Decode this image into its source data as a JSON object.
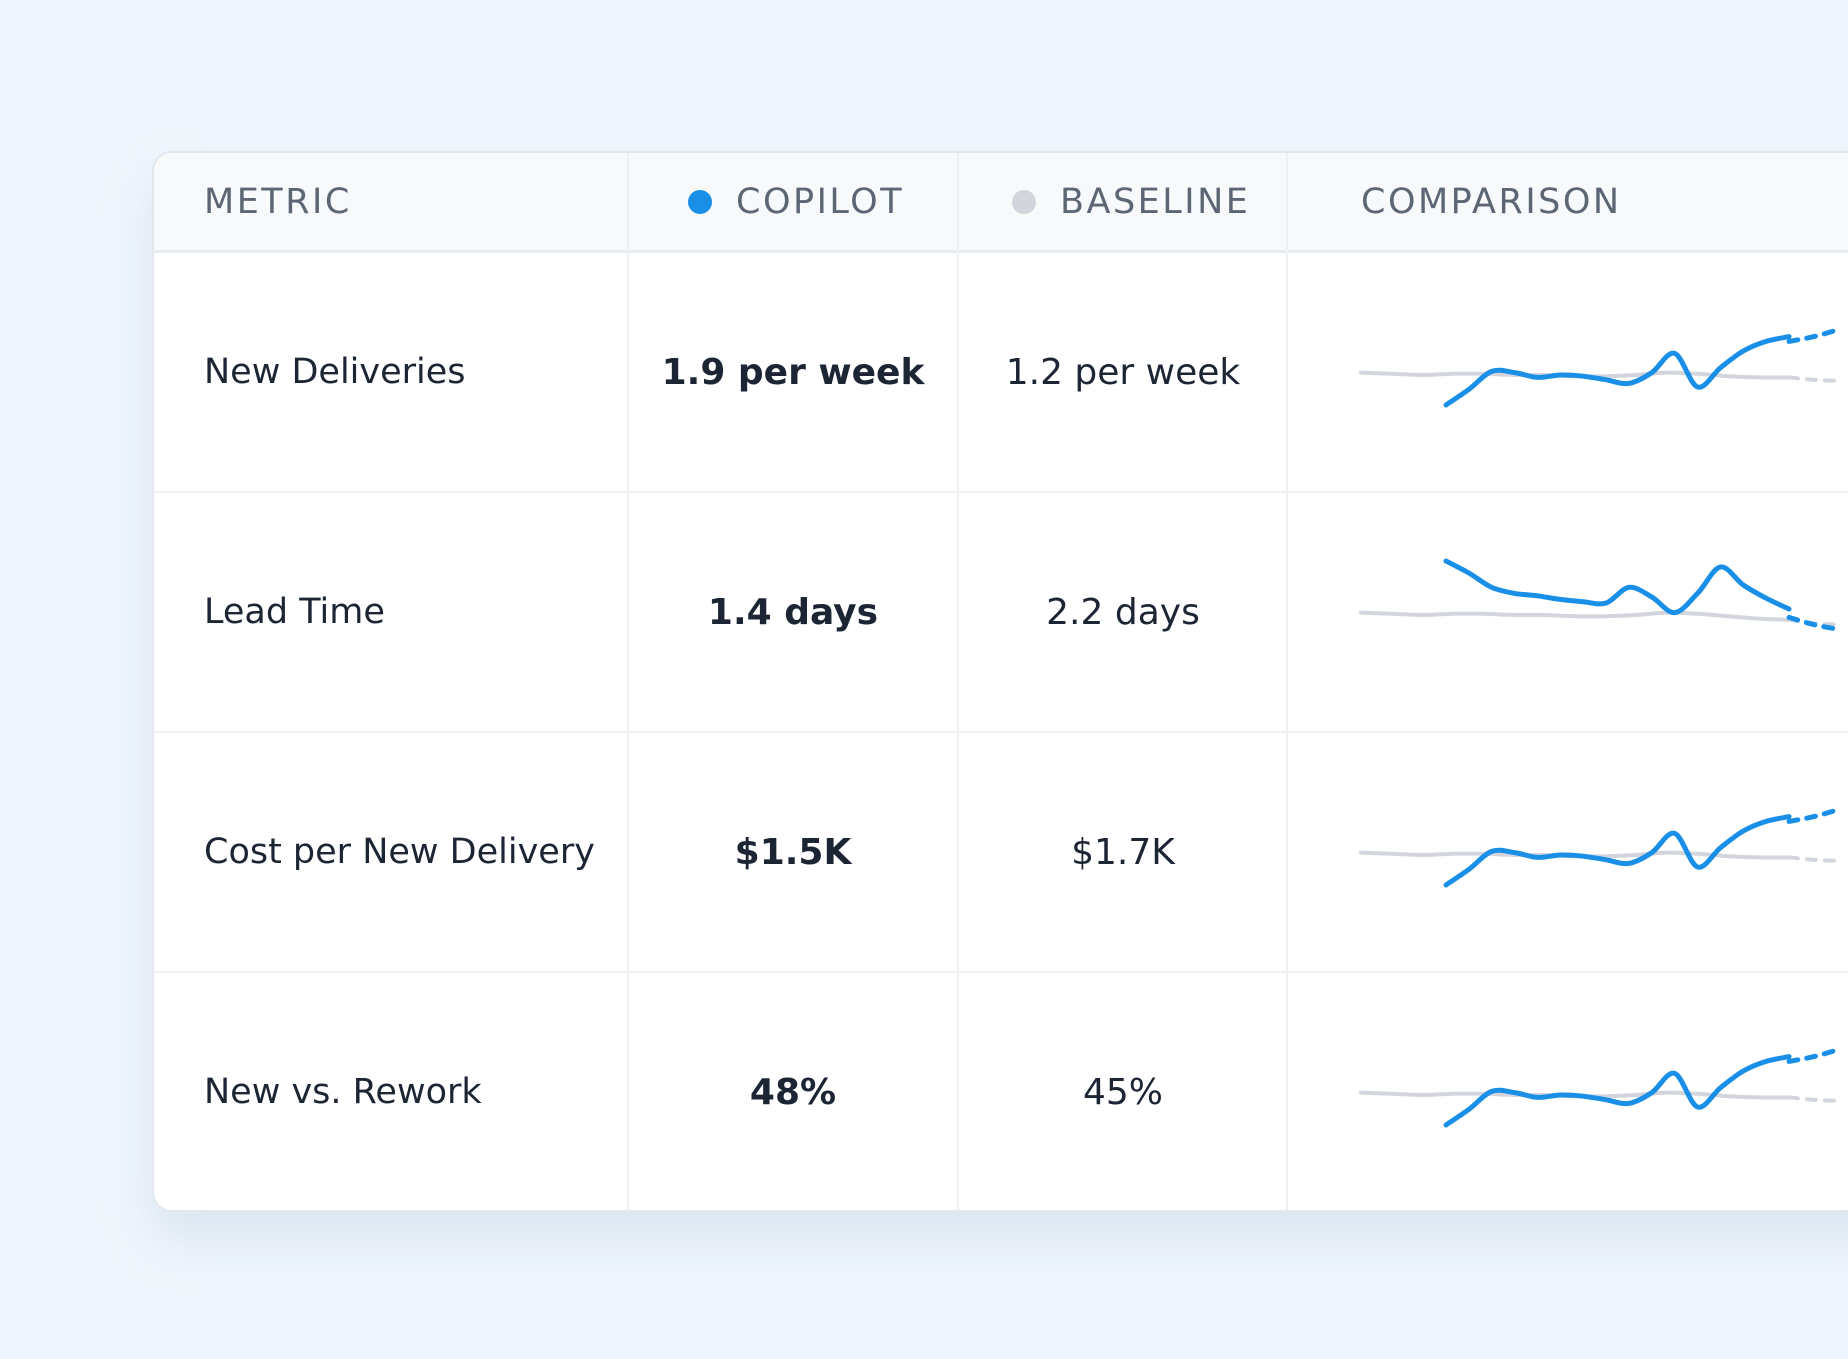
{
  "colors": {
    "copilot": "#1a8fe8",
    "baseline": "#d2d6dc"
  },
  "header": {
    "metric": "METRIC",
    "copilot": "COPILOT",
    "baseline": "BASELINE",
    "comparison": "COMPARISON"
  },
  "rows": [
    {
      "metric": "New Deliveries",
      "copilot": "1.9 per week",
      "baseline": "1.2 per week",
      "trend": {
        "baseline": [
          0.82,
          0.81,
          0.8,
          0.81,
          0.81,
          0.8,
          0.8,
          0.79,
          0.79,
          0.8,
          0.82,
          0.81,
          0.79,
          0.78,
          0.78
        ],
        "copilot": [
          0.55,
          0.68,
          0.83,
          0.82,
          0.78,
          0.8,
          0.79,
          0.76,
          0.73,
          0.82,
          0.98,
          0.7,
          0.86,
          1.0,
          1.08,
          1.12
        ],
        "copilot_forecast": [
          1.08,
          1.12,
          1.18
        ],
        "baseline_forecast": [
          0.78,
          0.76,
          0.75
        ]
      }
    },
    {
      "metric": "Lead Time",
      "copilot": "1.4 days",
      "baseline": "2.2 days",
      "trend": {
        "baseline": [
          0.82,
          0.81,
          0.8,
          0.81,
          0.81,
          0.8,
          0.8,
          0.79,
          0.79,
          0.8,
          0.82,
          0.81,
          0.79,
          0.77,
          0.76
        ],
        "copilot": [
          1.25,
          1.15,
          1.03,
          0.98,
          0.96,
          0.93,
          0.91,
          0.9,
          1.03,
          0.95,
          0.82,
          0.98,
          1.2,
          1.05,
          0.94,
          0.85
        ],
        "copilot_forecast": [
          0.78,
          0.72,
          0.68
        ],
        "baseline_forecast": [
          0.76,
          0.73,
          0.72
        ]
      }
    },
    {
      "metric": "Cost per New Delivery",
      "copilot": "$1.5K",
      "baseline": "$1.7K",
      "trend": {
        "baseline": [
          0.82,
          0.81,
          0.8,
          0.81,
          0.81,
          0.8,
          0.8,
          0.79,
          0.79,
          0.8,
          0.82,
          0.81,
          0.79,
          0.78,
          0.78
        ],
        "copilot": [
          0.55,
          0.68,
          0.83,
          0.82,
          0.78,
          0.8,
          0.79,
          0.76,
          0.73,
          0.82,
          0.98,
          0.7,
          0.86,
          1.0,
          1.08,
          1.12
        ],
        "copilot_forecast": [
          1.08,
          1.12,
          1.18
        ],
        "baseline_forecast": [
          0.78,
          0.76,
          0.75
        ]
      }
    },
    {
      "metric": "New vs. Rework",
      "copilot": "48%",
      "baseline": "45%",
      "trend": {
        "baseline": [
          0.82,
          0.81,
          0.8,
          0.81,
          0.81,
          0.8,
          0.8,
          0.79,
          0.79,
          0.8,
          0.82,
          0.81,
          0.79,
          0.78,
          0.78
        ],
        "copilot": [
          0.55,
          0.68,
          0.83,
          0.82,
          0.78,
          0.8,
          0.79,
          0.76,
          0.73,
          0.82,
          0.98,
          0.7,
          0.86,
          1.0,
          1.08,
          1.12
        ],
        "copilot_forecast": [
          1.08,
          1.12,
          1.18
        ],
        "baseline_forecast": [
          0.78,
          0.76,
          0.75
        ]
      }
    }
  ]
}
